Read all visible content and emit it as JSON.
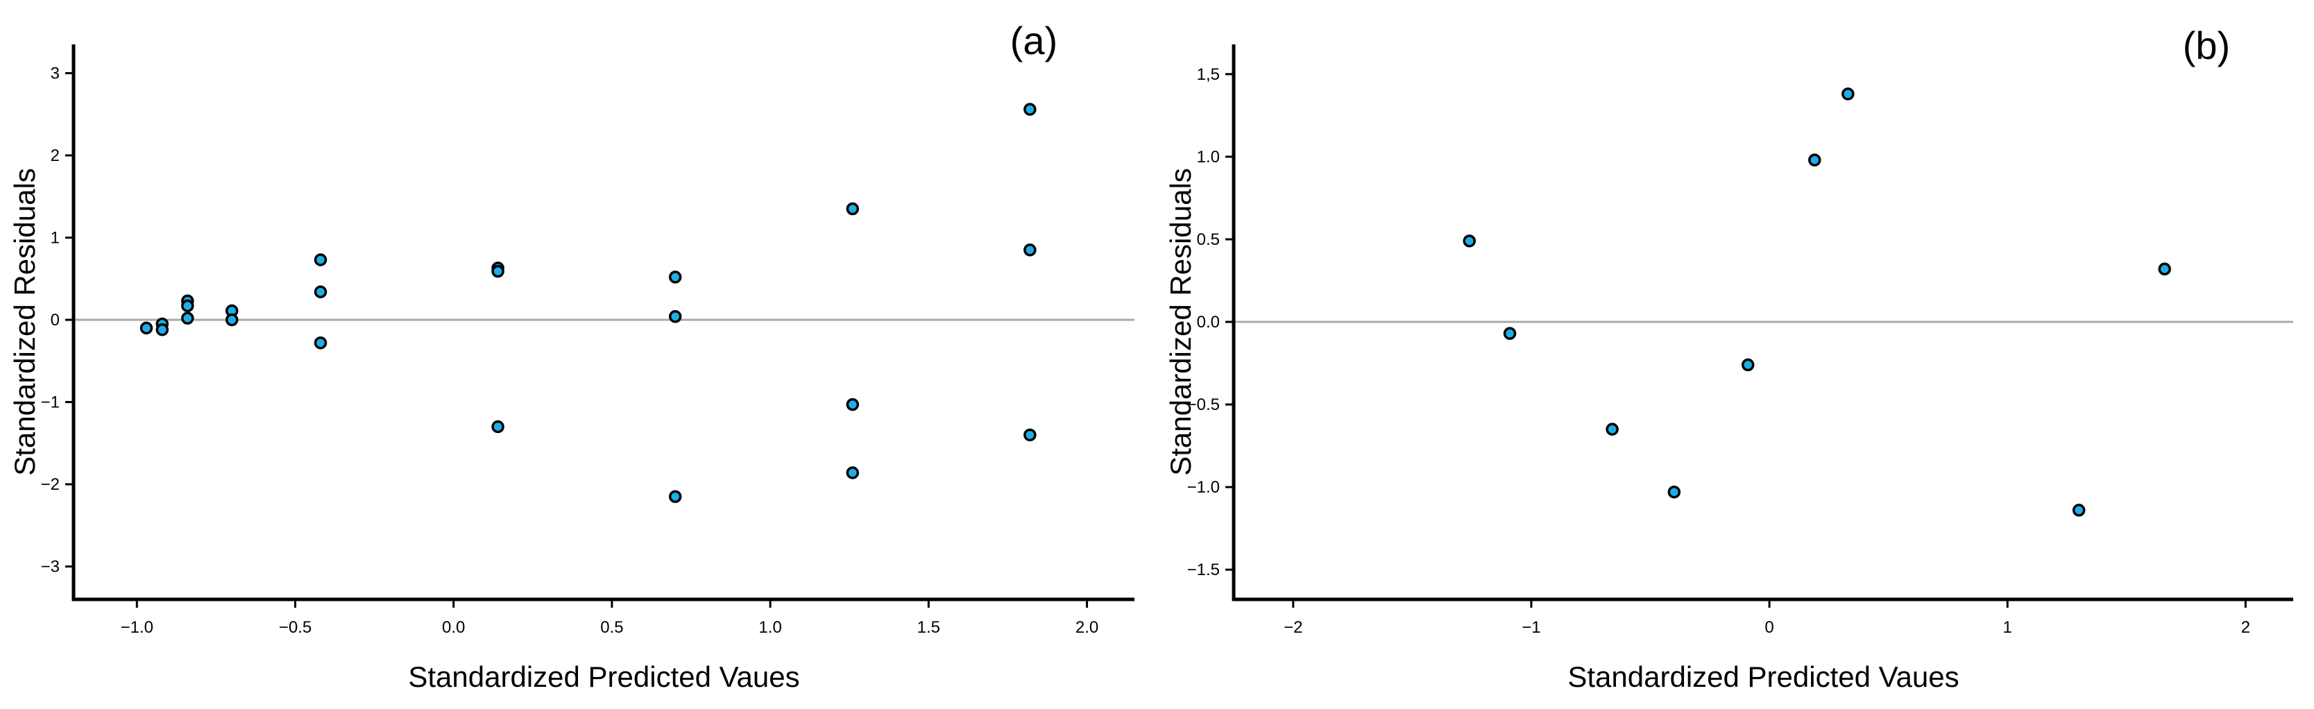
{
  "colors": {
    "point_fill": "#1EAEE6",
    "point_edge": "#000000",
    "reference_line": "#A9A9A9",
    "axis": "#000000",
    "background": "#FFFFFF"
  },
  "chart_data": [
    {
      "type": "scatter",
      "title": "",
      "panel_label": "(a)",
      "xlabel": "Standardized Predicted Vaues",
      "ylabel": "Standardized Residuals",
      "xlim": [
        -1.2,
        2.15
      ],
      "ylim": [
        -3.4,
        3.35
      ],
      "xticks": [
        -1.0,
        -0.5,
        0.0,
        0.5,
        1.0,
        1.5,
        2.0
      ],
      "xtick_labels": [
        "−1.0",
        "−0.5",
        "0.0",
        "0.5",
        "1.0",
        "1.5",
        "2.0"
      ],
      "yticks": [
        -3,
        -2,
        -1,
        0,
        1,
        2,
        3
      ],
      "ytick_labels": [
        "−3",
        "−2",
        "−1",
        "0",
        "1",
        "2",
        "3"
      ],
      "reference_line_y": 0,
      "grid": false,
      "legend": "none",
      "points": [
        {
          "x": -0.97,
          "y": -0.1
        },
        {
          "x": -0.92,
          "y": -0.05
        },
        {
          "x": -0.92,
          "y": -0.12
        },
        {
          "x": -0.84,
          "y": 0.23
        },
        {
          "x": -0.84,
          "y": 0.17
        },
        {
          "x": -0.84,
          "y": 0.02
        },
        {
          "x": -0.7,
          "y": 0.11
        },
        {
          "x": -0.7,
          "y": 0.0
        },
        {
          "x": -0.42,
          "y": 0.73
        },
        {
          "x": -0.42,
          "y": 0.34
        },
        {
          "x": -0.42,
          "y": -0.28
        },
        {
          "x": 0.14,
          "y": 0.63
        },
        {
          "x": 0.14,
          "y": 0.59
        },
        {
          "x": 0.14,
          "y": -1.3
        },
        {
          "x": 0.7,
          "y": 0.52
        },
        {
          "x": 0.7,
          "y": 0.04
        },
        {
          "x": 0.7,
          "y": -2.15
        },
        {
          "x": 1.26,
          "y": 1.35
        },
        {
          "x": 1.26,
          "y": -1.03
        },
        {
          "x": 1.26,
          "y": -1.86
        },
        {
          "x": 1.82,
          "y": 2.56
        },
        {
          "x": 1.82,
          "y": 0.85
        },
        {
          "x": 1.82,
          "y": -1.4
        }
      ]
    },
    {
      "type": "scatter",
      "title": "",
      "panel_label": "(b)",
      "xlabel": "Standardized Predicted Vaues",
      "ylabel": "Standardized Residuals",
      "xlim": [
        -2.25,
        2.2
      ],
      "ylim": [
        -1.68,
        1.68
      ],
      "xticks": [
        -2,
        -1,
        0,
        1,
        2
      ],
      "xtick_labels": [
        "−2",
        "−1",
        "0",
        "1",
        "2"
      ],
      "yticks": [
        -1.5,
        -1.0,
        -0.5,
        0.0,
        0.5,
        1.0,
        1.5
      ],
      "ytick_labels": [
        "−1.5",
        "−1.0",
        "−0.5",
        "0.0",
        "0.5",
        "1.0",
        "1,5"
      ],
      "reference_line_y": 0,
      "grid": false,
      "legend": "none",
      "points": [
        {
          "x": -1.26,
          "y": 0.49
        },
        {
          "x": -1.09,
          "y": -0.07
        },
        {
          "x": -0.66,
          "y": -0.65
        },
        {
          "x": -0.4,
          "y": -1.03
        },
        {
          "x": -0.09,
          "y": -0.26
        },
        {
          "x": 0.19,
          "y": 0.98
        },
        {
          "x": 0.33,
          "y": 1.38
        },
        {
          "x": 1.3,
          "y": -1.14
        },
        {
          "x": 1.66,
          "y": 0.32
        }
      ]
    }
  ]
}
